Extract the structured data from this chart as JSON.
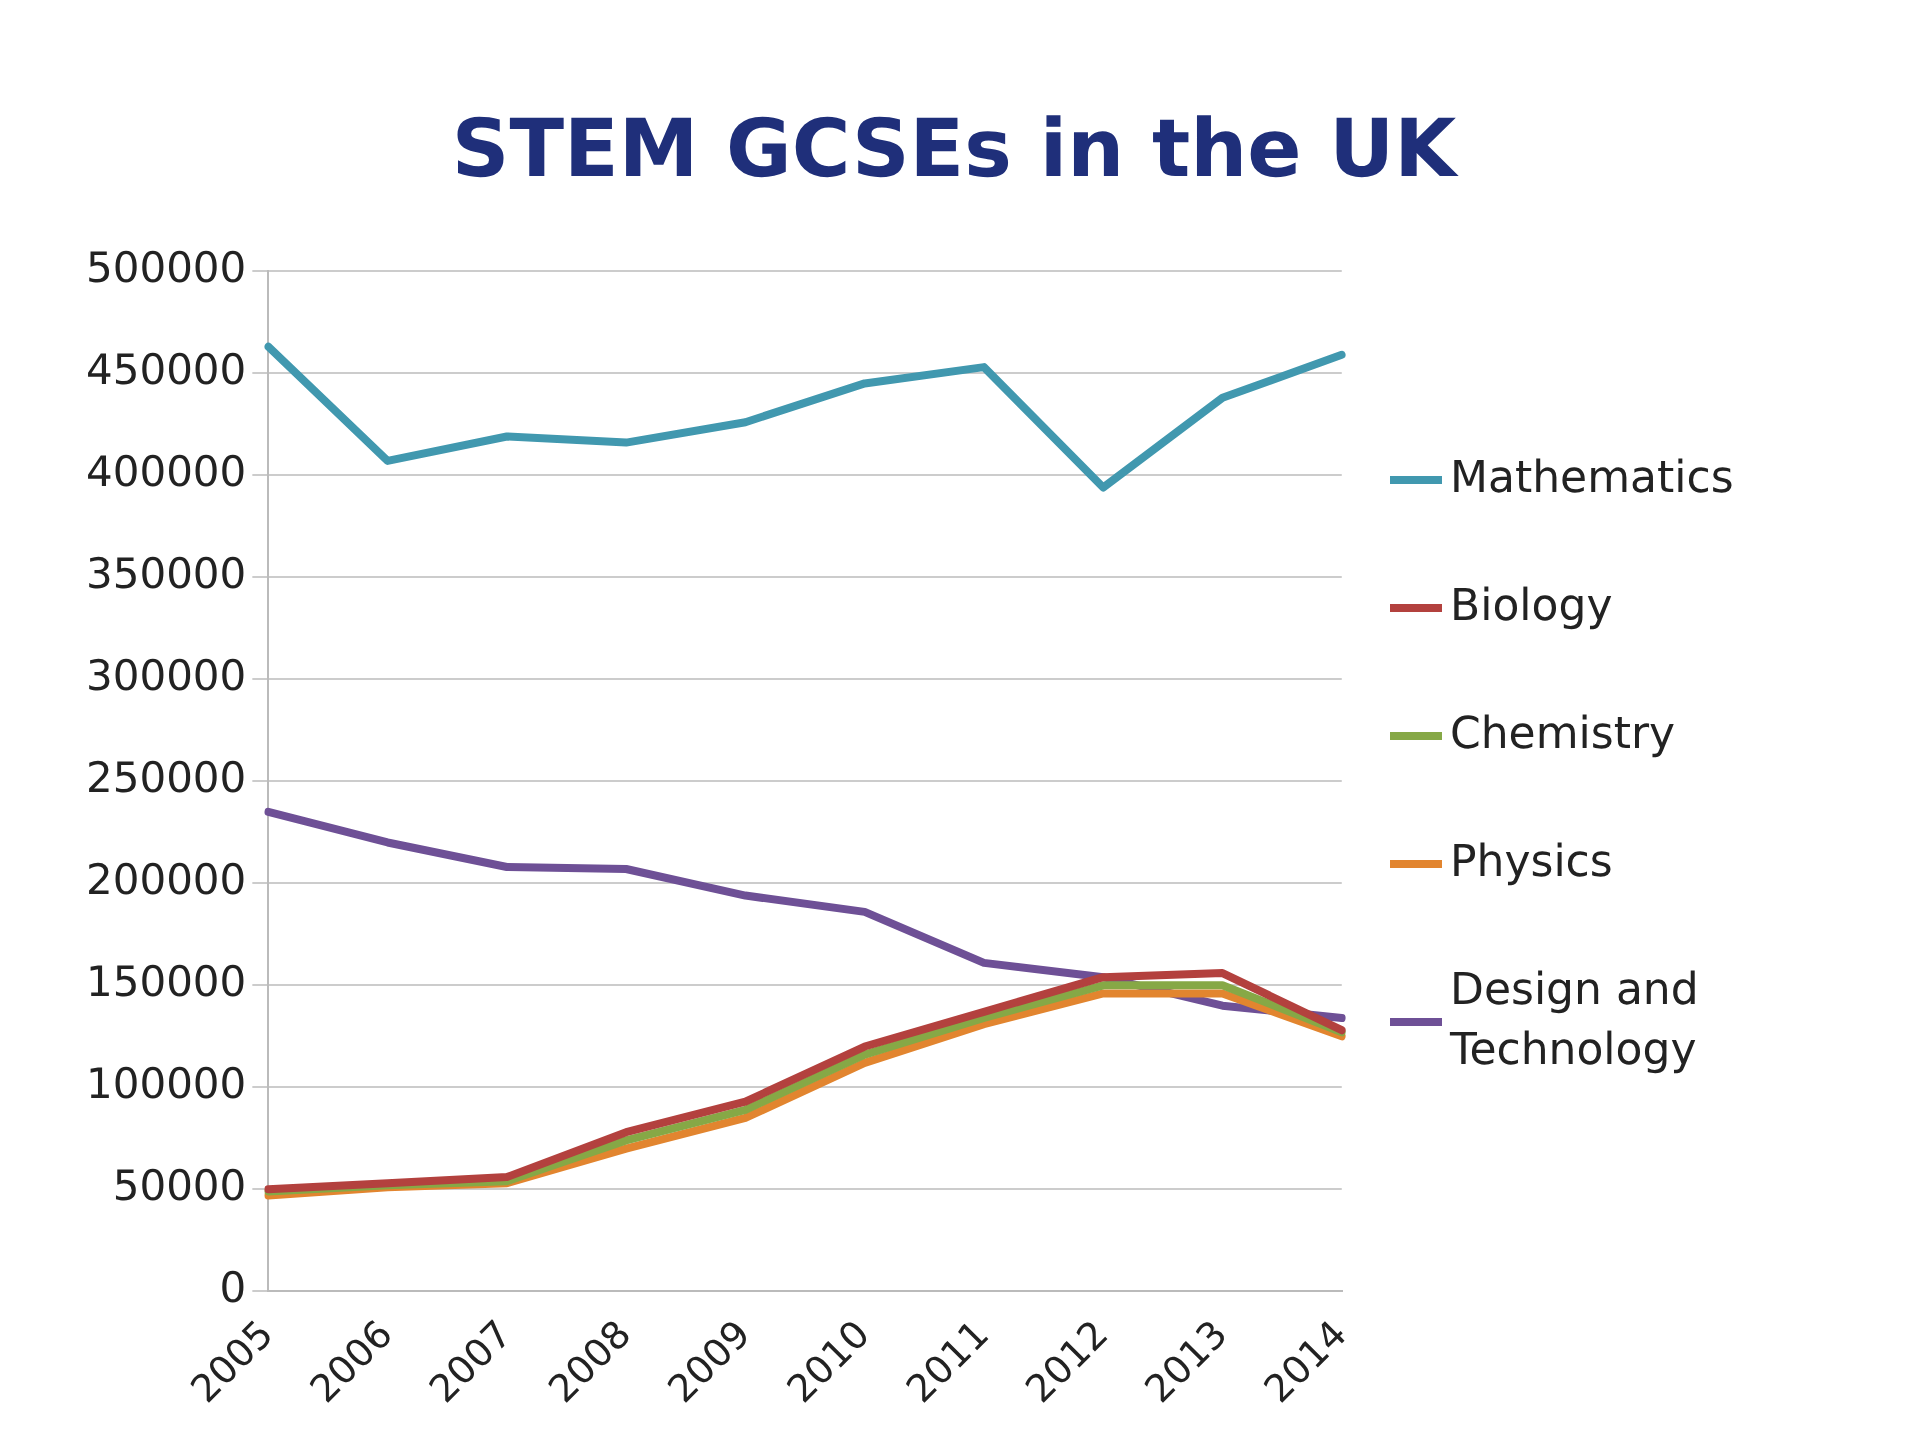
{
  "chart_data": {
    "type": "line",
    "title": "STEM GCSEs in the UK",
    "categories": [
      "2005",
      "2006",
      "2007",
      "2008",
      "2009",
      "2010",
      "2011",
      "2012",
      "2013",
      "2014"
    ],
    "series": [
      {
        "name": "Mathematics",
        "color": "#4198af",
        "values": [
          463000,
          407000,
          419000,
          416000,
          426000,
          445000,
          453000,
          394000,
          438000,
          459000
        ]
      },
      {
        "name": "Biology",
        "color": "#b3413e",
        "values": [
          50000,
          53000,
          56000,
          78000,
          93000,
          120000,
          137000,
          154000,
          156000,
          128000
        ]
      },
      {
        "name": "Chemistry",
        "color": "#86a846",
        "values": [
          49000,
          52000,
          54000,
          74000,
          89000,
          116000,
          134000,
          150000,
          150000,
          127000
        ]
      },
      {
        "name": "Physics",
        "color": "#e2852f",
        "values": [
          47000,
          51000,
          53000,
          70000,
          85000,
          112000,
          131000,
          146000,
          146000,
          125000
        ]
      },
      {
        "name": "Design and Technology",
        "color": "#6e5096",
        "values": [
          235000,
          220000,
          208000,
          207000,
          194000,
          186000,
          161000,
          154000,
          140000,
          134000
        ]
      }
    ],
    "ylim": [
      0,
      500000
    ],
    "yticks": [
      0,
      50000,
      100000,
      150000,
      200000,
      250000,
      300000,
      350000,
      400000,
      450000,
      500000
    ],
    "grid": "y",
    "legend": "right",
    "marker": "none",
    "line_style": "solid"
  }
}
